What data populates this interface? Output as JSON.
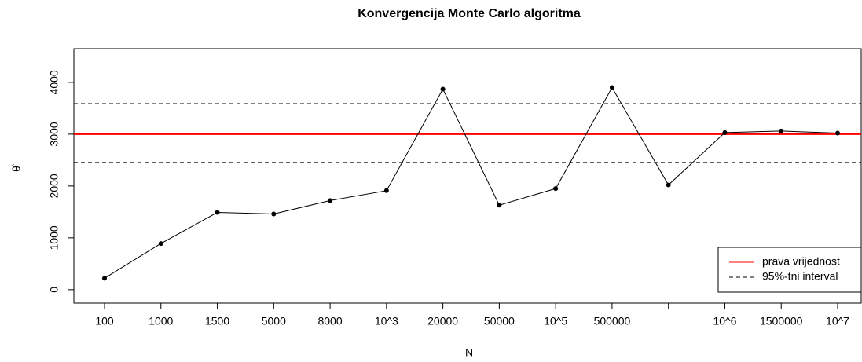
{
  "chart_data": {
    "type": "line",
    "title": "Konvergencija Monte Carlo algoritma",
    "x_label": "N",
    "y_label": "θ̂",
    "categories": [
      "100",
      "1000",
      "1500",
      "5000",
      "8000",
      "10^3",
      "20000",
      "50000",
      "10^5",
      "500000",
      null,
      "10^6",
      "1500000",
      "10^7"
    ],
    "values": [
      220,
      890,
      1490,
      1460,
      1720,
      1910,
      3870,
      1630,
      1950,
      3900,
      2020,
      3030,
      3060,
      3020
    ],
    "color": "#000000",
    "ylim": [
      -260,
      4650
    ],
    "yticks": [
      0,
      1000,
      2000,
      3000,
      4000
    ],
    "reference_lines": [
      {
        "name": "prava vrijednost",
        "value": 3000,
        "color": "#ff0000",
        "style": "solid"
      },
      {
        "name": "95%-tni interval",
        "values": [
          2455,
          3590
        ],
        "color": "#000000",
        "style": "dashed"
      }
    ],
    "legend": "bottom-right"
  }
}
